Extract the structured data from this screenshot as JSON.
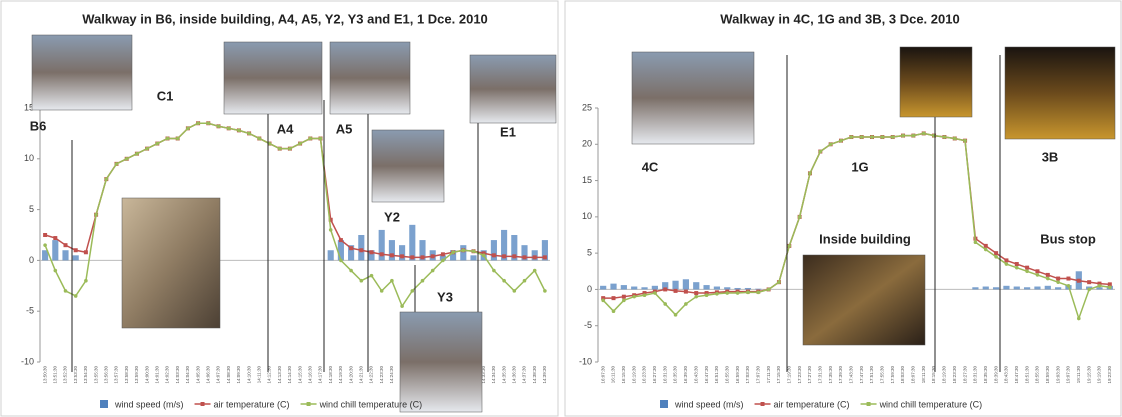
{
  "chart_data": [
    {
      "type": "combo",
      "title": "Walkway in B6, inside building, A4, A5, Y2, Y3 and E1, 1 Dce. 2010",
      "annotations": [
        "B6",
        "C1",
        "A4",
        "A5",
        "Y2",
        "Y3",
        "E1"
      ],
      "categories": [
        "13:50:30",
        "13:51:30",
        "13:52:30",
        "13:53:30",
        "13:54:30",
        "13:55:30",
        "13:56:30",
        "13:57:30",
        "13:58:30",
        "13:59:30",
        "14:00:30",
        "14:01:30",
        "14:02:30",
        "14:03:30",
        "14:04:30",
        "14:05:30",
        "14:06:30",
        "14:07:30",
        "14:08:30",
        "14:09:30",
        "14:10:30",
        "14:11:30",
        "14:12:30",
        "14:13:30",
        "14:14:30",
        "14:15:30",
        "14:16:30",
        "14:17:30",
        "14:18:30",
        "14:19:30",
        "14:20:30",
        "14:21:30",
        "14:22:30",
        "14:23:30",
        "14:24:30",
        "14:25:30",
        "14:26:30",
        "14:27:30",
        "14:28:30",
        "14:29:30",
        "14:30:30",
        "14:31:30",
        "14:32:30",
        "14:33:30",
        "14:34:30",
        "14:35:30",
        "14:36:30",
        "14:37:30",
        "14:38:30",
        "14:39:30"
      ],
      "series": [
        {
          "name": "wind speed (m/s)",
          "kind": "bar",
          "color": "#4f81bd",
          "values": [
            1,
            2,
            1,
            0.5,
            0,
            0,
            0,
            0,
            0,
            0,
            0,
            0,
            0,
            0,
            0,
            0,
            0,
            0,
            0,
            0,
            0,
            0,
            0,
            0,
            0,
            0,
            0,
            0,
            1,
            2,
            1.5,
            2.5,
            1,
            3,
            2,
            1.5,
            3.5,
            2,
            1,
            0.5,
            1,
            1.5,
            0.5,
            1,
            2,
            3,
            2.5,
            1.5,
            1,
            2
          ]
        },
        {
          "name": "air temperature (C)",
          "kind": "line",
          "color": "#c0504d",
          "values": [
            2.5,
            2.2,
            1.5,
            1.0,
            0.8,
            4.5,
            8.0,
            9.5,
            10.0,
            10.5,
            11.0,
            11.5,
            12.0,
            12.0,
            13.0,
            13.5,
            13.5,
            13.2,
            13.0,
            12.8,
            12.5,
            12.0,
            11.5,
            11.0,
            11.0,
            11.5,
            12.0,
            12.0,
            4.0,
            2.0,
            1.2,
            1.0,
            0.8,
            0.6,
            0.5,
            0.4,
            0.3,
            0.3,
            0.4,
            0.6,
            0.8,
            1.0,
            0.9,
            0.7,
            0.5,
            0.4,
            0.4,
            0.3,
            0.3,
            0.3
          ]
        },
        {
          "name": "wind chill temperature (C)",
          "kind": "line",
          "color": "#9bbb59",
          "values": [
            1.5,
            -1,
            -3,
            -3.5,
            -2,
            4.5,
            8,
            9.5,
            10,
            10.5,
            11,
            11.5,
            12,
            12,
            13,
            13.5,
            13.5,
            13.2,
            13,
            12.8,
            12.5,
            12,
            11.5,
            11,
            11,
            11.5,
            12,
            12,
            3,
            0,
            -1,
            -2,
            -1.5,
            -3,
            -2,
            -4.5,
            -3,
            -2,
            -1,
            0,
            0.8,
            1,
            0.9,
            0.5,
            -1,
            -2,
            -3,
            -2,
            -1,
            -3
          ]
        }
      ],
      "ylim": [
        -10,
        15
      ],
      "yticks": [
        -10,
        -5,
        0,
        5,
        10,
        15
      ]
    },
    {
      "type": "combo",
      "title": "Walkway in 4C, 1G and 3B, 3 Dce. 2010",
      "annotations": [
        "4C",
        "1G",
        "3B",
        "Inside building",
        "Bus stop"
      ],
      "categories": [
        "16:07:30",
        "16:11:30",
        "16:15:30",
        "16:19:30",
        "16:23:30",
        "16:27:30",
        "16:31:30",
        "16:35:30",
        "16:39:30",
        "16:43:30",
        "16:47:30",
        "16:51:30",
        "16:55:30",
        "16:59:30",
        "17:03:30",
        "17:07:30",
        "17:11:30",
        "17:15:30",
        "17:19:30",
        "17:23:30",
        "17:27:30",
        "17:31:30",
        "17:35:30",
        "17:39:30",
        "17:43:30",
        "17:47:30",
        "17:51:30",
        "17:55:30",
        "17:59:30",
        "18:03:30",
        "18:07:30",
        "18:11:30",
        "18:15:30",
        "18:19:30",
        "18:23:30",
        "18:27:30",
        "18:31:30",
        "18:35:30",
        "18:39:30",
        "18:43:30",
        "18:47:30",
        "18:51:30",
        "18:55:30",
        "18:59:30",
        "19:03:30",
        "19:07:30",
        "19:11:30",
        "19:15:30",
        "19:19:30",
        "19:23:30"
      ],
      "series": [
        {
          "name": "wind speed (m/s)",
          "kind": "bar",
          "color": "#4f81bd",
          "values": [
            0.5,
            0.8,
            0.6,
            0.4,
            0.3,
            0.5,
            1,
            1.2,
            1.4,
            1,
            0.6,
            0.4,
            0.3,
            0.2,
            0.2,
            0.1,
            0,
            0,
            0,
            0,
            0,
            0,
            0,
            0,
            0,
            0,
            0,
            0,
            0,
            0,
            0,
            0,
            0,
            0,
            0,
            0,
            0.3,
            0.4,
            0.3,
            0.5,
            0.4,
            0.3,
            0.4,
            0.5,
            0.3,
            0.6,
            2.5,
            0.4,
            0.3,
            0.5
          ]
        },
        {
          "name": "air temperature (C)",
          "kind": "line",
          "color": "#c0504d",
          "values": [
            -1.2,
            -1.2,
            -1,
            -0.8,
            -0.5,
            -0.3,
            0,
            -0.2,
            -0.3,
            -0.5,
            -0.5,
            -0.4,
            -0.3,
            -0.3,
            -0.3,
            -0.3,
            0,
            1,
            6,
            10,
            16,
            19,
            20,
            20.5,
            21,
            21,
            21,
            21,
            21,
            21.2,
            21.2,
            21.5,
            21.2,
            21,
            20.8,
            20.5,
            7,
            6,
            5,
            4,
            3.5,
            3,
            2.5,
            2,
            1.5,
            1.5,
            1.2,
            1,
            0.8,
            0.7
          ]
        },
        {
          "name": "wind chill temperature (C)",
          "kind": "line",
          "color": "#9bbb59",
          "values": [
            -1.5,
            -3,
            -1.5,
            -1,
            -0.8,
            -0.5,
            -2,
            -3.5,
            -2,
            -1,
            -0.8,
            -0.6,
            -0.5,
            -0.5,
            -0.4,
            -0.4,
            0,
            1,
            6,
            10,
            16,
            19,
            20,
            20.5,
            21,
            21,
            21,
            21,
            21,
            21.2,
            21.2,
            21.5,
            21.2,
            21,
            20.8,
            20.5,
            6.5,
            5.5,
            4.5,
            3.5,
            3,
            2.5,
            2,
            1.5,
            1,
            0.5,
            -4,
            0,
            0.5,
            0.3
          ]
        }
      ],
      "ylim": [
        -10,
        25
      ],
      "yticks": [
        -10,
        -5,
        0,
        5,
        10,
        15,
        20,
        25
      ]
    }
  ]
}
